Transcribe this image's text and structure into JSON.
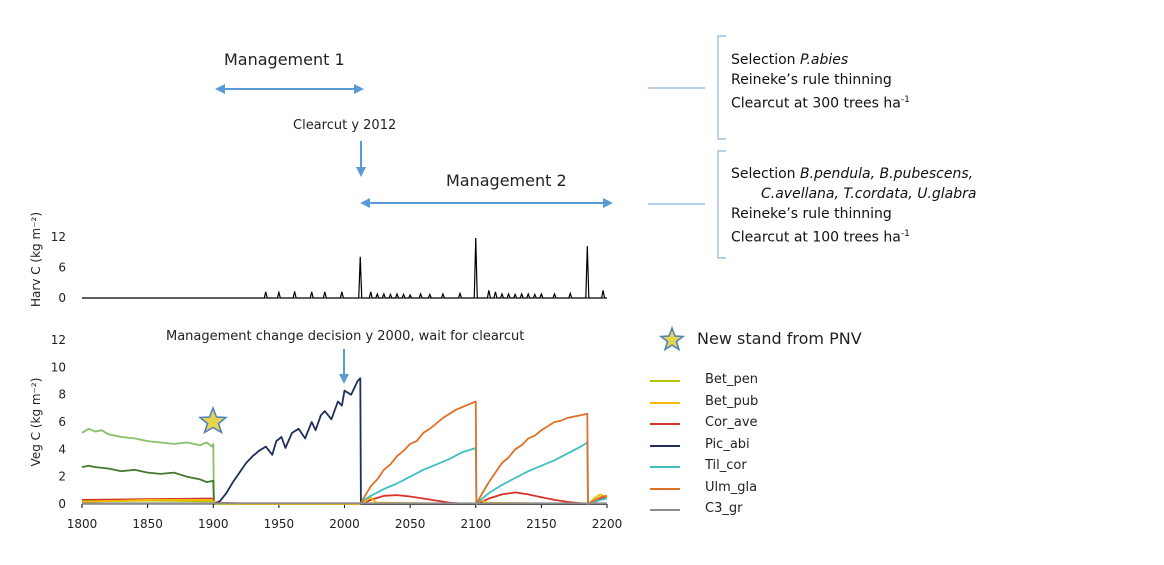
{
  "annotations": {
    "management1": "Management 1",
    "management2": "Management 2",
    "clearcut": "Clearcut y 2012",
    "decision": "Management change decision y 2000, wait for clearcut",
    "new_stand": "New stand from PNV"
  },
  "notes": {
    "m1": {
      "line1_prefix": "Selection ",
      "line1_species": "P.abies",
      "line2": "Reineke’s rule thinning",
      "line3_prefix": "Clearcut at 300 trees ha",
      "line3_sup": "-1"
    },
    "m2": {
      "line1_prefix": "Selection ",
      "line1_species": "B.pendula, B.pubescens,",
      "line2_species": "C.avellana, T.cordata, U.glabra",
      "line3": "Reineke’s rule thinning",
      "line4_prefix": "Clearcut at 100 trees ha",
      "line4_sup": "-1"
    }
  },
  "colors": {
    "arrow": "#5b9bd5",
    "bracket": "#8fb4dc",
    "star_fill": "#e8d44d",
    "star_stroke": "#4a7fc1"
  },
  "chart_data": [
    {
      "type": "bar",
      "ylabel": "Harv C (kg m⁻²)",
      "ylim": [
        0,
        12
      ],
      "yticks": [
        0,
        6,
        12
      ],
      "xlim": [
        1800,
        2200
      ],
      "series": [
        {
          "values": [
            [
              1940,
              1.2
            ],
            [
              1950,
              1.1
            ],
            [
              1962,
              1.3
            ],
            [
              1975,
              1.2
            ],
            [
              1985,
              1.2
            ],
            [
              1998,
              1.2
            ],
            [
              2012,
              8.1
            ],
            [
              2020,
              1.2
            ],
            [
              2025,
              0.8
            ],
            [
              2030,
              0.8
            ],
            [
              2035,
              0.7
            ],
            [
              2040,
              0.8
            ],
            [
              2045,
              0.7
            ],
            [
              2050,
              0.6
            ],
            [
              2058,
              0.8
            ],
            [
              2065,
              0.7
            ],
            [
              2075,
              0.8
            ],
            [
              2088,
              0.9
            ],
            [
              2100,
              11.8
            ],
            [
              2110,
              1.5
            ],
            [
              2115,
              1.2
            ],
            [
              2120,
              0.8
            ],
            [
              2125,
              0.8
            ],
            [
              2130,
              0.7
            ],
            [
              2135,
              0.8
            ],
            [
              2140,
              0.8
            ],
            [
              2145,
              0.7
            ],
            [
              2150,
              0.8
            ],
            [
              2160,
              0.8
            ],
            [
              2172,
              0.9
            ],
            [
              2185,
              10.2
            ],
            [
              2197,
              1.5
            ]
          ]
        }
      ]
    },
    {
      "type": "line",
      "ylabel": "Veg C (kg m⁻²)",
      "xlim": [
        1800,
        2200
      ],
      "ylim": [
        0,
        12
      ],
      "xticks": [
        1800,
        1850,
        1900,
        1950,
        2000,
        2050,
        2100,
        2150,
        2200
      ],
      "yticks": [
        0,
        2,
        4,
        6,
        8,
        10,
        12
      ],
      "legend": [
        "Bet_pen",
        "Bet_pub",
        "Cor_ave",
        "Pic_abi",
        "Til_cor",
        "Ulm_gla",
        "C3_gr"
      ],
      "series": [
        {
          "name": "light-green",
          "color": "#86c06a",
          "x": [
            1800,
            1805,
            1810,
            1815,
            1820,
            1830,
            1840,
            1850,
            1860,
            1870,
            1880,
            1890,
            1895,
            1899,
            1900,
            1900.5
          ],
          "y": [
            5.2,
            5.5,
            5.3,
            5.4,
            5.1,
            4.9,
            4.8,
            4.6,
            4.5,
            4.4,
            4.5,
            4.3,
            4.5,
            4.2,
            4.4,
            0
          ]
        },
        {
          "name": "dark-green",
          "color": "#3f7b29",
          "x": [
            1800,
            1805,
            1810,
            1820,
            1830,
            1840,
            1850,
            1860,
            1870,
            1880,
            1890,
            1895,
            1900,
            1900.5
          ],
          "y": [
            2.7,
            2.8,
            2.7,
            2.6,
            2.4,
            2.5,
            2.3,
            2.2,
            2.3,
            2.0,
            1.8,
            1.6,
            1.7,
            0
          ]
        },
        {
          "name": "Cor_ave",
          "color": "#d9312b",
          "x": [
            1800,
            1850,
            1899,
            1901,
            1920,
            2012,
            2013,
            2020,
            2030,
            2040,
            2050,
            2060,
            2070,
            2080,
            2090,
            2100,
            2101,
            2110,
            2120,
            2130,
            2140,
            2150,
            2160,
            2170,
            2180,
            2185,
            2186,
            2195,
            2200
          ],
          "y": [
            0.3,
            0.35,
            0.4,
            0.1,
            0.05,
            0.05,
            0,
            0.3,
            0.6,
            0.65,
            0.55,
            0.4,
            0.25,
            0.1,
            0.02,
            0,
            0,
            0.4,
            0.7,
            0.85,
            0.7,
            0.5,
            0.3,
            0.15,
            0.05,
            0,
            0,
            0.4,
            0.5
          ]
        },
        {
          "name": "Bet_pen",
          "color": "#b8c400",
          "x": [
            1800,
            1850,
            1899,
            1901,
            1920,
            2200
          ],
          "y": [
            0.2,
            0.25,
            0.2,
            0,
            0,
            0
          ]
        },
        {
          "name": "Bet_pub",
          "color": "#f5b800",
          "x": [
            1800,
            1850,
            1899,
            1901,
            1920,
            2012,
            2013,
            2016,
            2020,
            2024,
            2100,
            2101,
            2104,
            2108,
            2186,
            2190,
            2195,
            2200
          ],
          "y": [
            0.15,
            0.3,
            0.3,
            0.1,
            0,
            0,
            0,
            0.2,
            0.5,
            0.1,
            0,
            0,
            0.3,
            0.1,
            0,
            0.4,
            0.7,
            0.5
          ]
        },
        {
          "name": "Pic_abi",
          "color": "#1f2e5a",
          "x": [
            1900,
            1905,
            1910,
            1915,
            1920,
            1925,
            1930,
            1935,
            1940,
            1945,
            1948,
            1952,
            1955,
            1960,
            1965,
            1970,
            1975,
            1978,
            1982,
            1985,
            1990,
            1995,
            1998,
            2000,
            2005,
            2010,
            2012,
            2012.5,
            2200
          ],
          "y": [
            0,
            0.2,
            0.8,
            1.6,
            2.3,
            3.0,
            3.5,
            3.9,
            4.2,
            3.6,
            4.6,
            4.9,
            4.1,
            5.2,
            5.5,
            4.8,
            6.0,
            5.4,
            6.5,
            6.8,
            6.2,
            7.5,
            7.2,
            8.3,
            8.0,
            9.0,
            9.2,
            0,
            0
          ]
        },
        {
          "name": "Til_cor",
          "color": "#3fbfbf",
          "x": [
            2012,
            2015,
            2020,
            2030,
            2040,
            2050,
            2060,
            2070,
            2080,
            2090,
            2100,
            2100.5,
            2105,
            2110,
            2120,
            2130,
            2140,
            2150,
            2160,
            2170,
            2180,
            2185,
            2185.5,
            2195,
            2200
          ],
          "y": [
            0,
            0.3,
            0.6,
            1.1,
            1.5,
            2.0,
            2.5,
            2.9,
            3.3,
            3.8,
            4.1,
            0,
            0.4,
            0.8,
            1.4,
            1.9,
            2.4,
            2.8,
            3.2,
            3.7,
            4.2,
            4.5,
            0,
            0.3,
            0.4
          ]
        },
        {
          "name": "Ulm_gla",
          "color": "#e07028",
          "x": [
            2012,
            2015,
            2020,
            2025,
            2030,
            2035,
            2040,
            2045,
            2050,
            2055,
            2060,
            2065,
            2070,
            2075,
            2080,
            2085,
            2090,
            2095,
            2100,
            2100.5,
            2105,
            2110,
            2115,
            2120,
            2125,
            2130,
            2135,
            2140,
            2145,
            2150,
            2155,
            2160,
            2165,
            2170,
            2175,
            2180,
            2185,
            2185.5,
            2195,
            2200
          ],
          "y": [
            0,
            0.5,
            1.3,
            1.8,
            2.5,
            2.9,
            3.5,
            3.9,
            4.4,
            4.6,
            5.2,
            5.5,
            5.9,
            6.3,
            6.6,
            6.9,
            7.1,
            7.3,
            7.5,
            0,
            0.8,
            1.6,
            2.3,
            3.0,
            3.4,
            4.0,
            4.3,
            4.8,
            5.0,
            5.4,
            5.7,
            6.0,
            6.1,
            6.3,
            6.4,
            6.5,
            6.6,
            0,
            0.5,
            0.6
          ]
        },
        {
          "name": "C3_gr",
          "color": "#8c8c8c",
          "x": [
            1800,
            2200
          ],
          "y": [
            0.05,
            0.05
          ]
        }
      ],
      "legend_colors": [
        "#b8c400",
        "#f5b800",
        "#d9312b",
        "#1f2e5a",
        "#3fbfbf",
        "#e07028",
        "#8c8c8c"
      ]
    }
  ]
}
